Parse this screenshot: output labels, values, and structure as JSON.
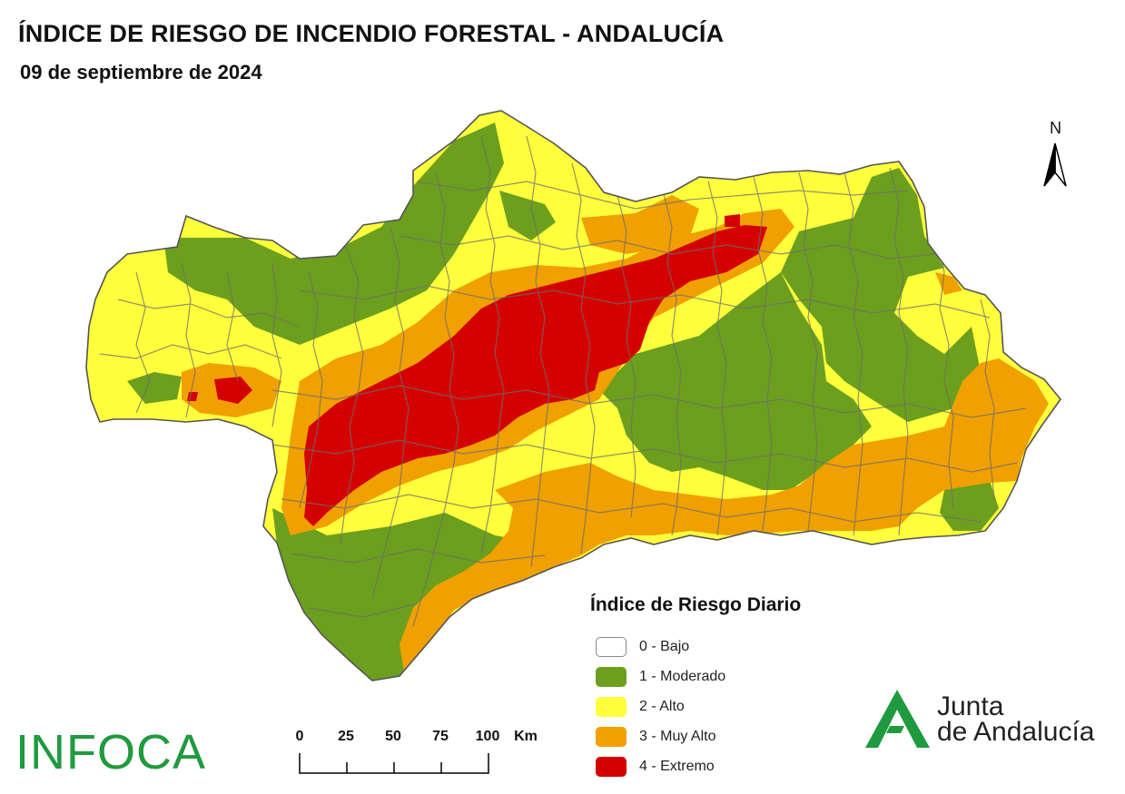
{
  "header": {
    "title": "ÍNDICE DE RIESGO DE INCENDIO FORESTAL - ANDALUCÍA",
    "date": "09 de septiembre de 2024"
  },
  "north": {
    "label": "N",
    "icon": "north-arrow-icon"
  },
  "legend": {
    "title": "Índice de Riesgo Diario",
    "items": [
      {
        "label": "0 - Bajo",
        "color": "#ffffff"
      },
      {
        "label": "1 - Moderado",
        "color": "#6c9f1e"
      },
      {
        "label": "2 - Alto",
        "color": "#ffff3c"
      },
      {
        "label": "3 - Muy Alto",
        "color": "#f0a000"
      },
      {
        "label": "4 - Extremo",
        "color": "#d40000"
      }
    ]
  },
  "scale": {
    "ticks": [
      "0",
      "25",
      "50",
      "75",
      "100"
    ],
    "unit": "Km"
  },
  "logos": {
    "infoca": "INFOCA",
    "junta_line1": "Junta",
    "junta_line2": "de Andalucía"
  }
}
